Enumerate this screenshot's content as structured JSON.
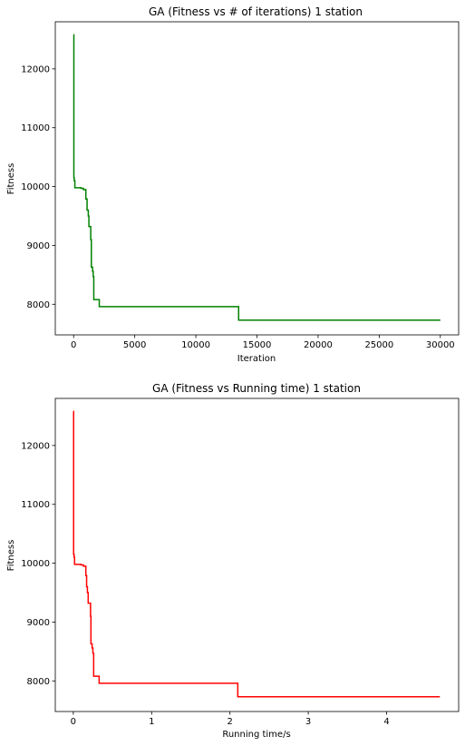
{
  "chart_data": [
    {
      "type": "line",
      "title": "GA (Fitness vs # of iterations)   1 station",
      "xlabel": "Iteration",
      "ylabel": "Fitness",
      "xlim": [
        -1500,
        31500
      ],
      "ylim": [
        7480,
        12800
      ],
      "xticks": [
        0,
        5000,
        10000,
        15000,
        20000,
        25000,
        30000
      ],
      "xtick_labels": [
        "0",
        "5000",
        "10000",
        "15000",
        "20000",
        "25000",
        "30000"
      ],
      "yticks": [
        8000,
        9000,
        10000,
        11000,
        12000
      ],
      "ytick_labels": [
        "8000",
        "9000",
        "10000",
        "11000",
        "12000"
      ],
      "grid": false,
      "legend": "none",
      "series": [
        {
          "color": "#008000",
          "step": "post",
          "x": [
            0,
            20,
            50,
            100,
            600,
            800,
            1000,
            1100,
            1200,
            1250,
            1400,
            1450,
            1550,
            1600,
            1650,
            2100,
            13500,
            30000
          ],
          "y": [
            12580,
            10150,
            10100,
            9980,
            9970,
            9950,
            9790,
            9600,
            9500,
            9320,
            9100,
            8630,
            8560,
            8470,
            8080,
            7960,
            7730,
            7730
          ]
        }
      ]
    },
    {
      "type": "line",
      "title": "GA (Fitness vs Running time)   1 station",
      "xlabel": "Running time/s",
      "ylabel": "Fitness",
      "xlim": [
        -0.23,
        4.92
      ],
      "ylim": [
        7480,
        12800
      ],
      "xticks": [
        0,
        1,
        2,
        3,
        4
      ],
      "xtick_labels": [
        "0",
        "1",
        "2",
        "3",
        "4"
      ],
      "yticks": [
        8000,
        9000,
        10000,
        11000,
        12000
      ],
      "ytick_labels": [
        "8000",
        "9000",
        "10000",
        "11000",
        "12000"
      ],
      "grid": false,
      "legend": "none",
      "series": [
        {
          "color": "#ff0000",
          "step": "post",
          "x": [
            0,
            0.004,
            0.01,
            0.016,
            0.1,
            0.13,
            0.16,
            0.17,
            0.18,
            0.19,
            0.22,
            0.225,
            0.24,
            0.25,
            0.26,
            0.33,
            2.1,
            4.68
          ],
          "y": [
            12580,
            10150,
            10100,
            9980,
            9970,
            9950,
            9790,
            9600,
            9500,
            9320,
            9100,
            8630,
            8560,
            8470,
            8080,
            7960,
            7730,
            7730
          ]
        }
      ]
    }
  ]
}
